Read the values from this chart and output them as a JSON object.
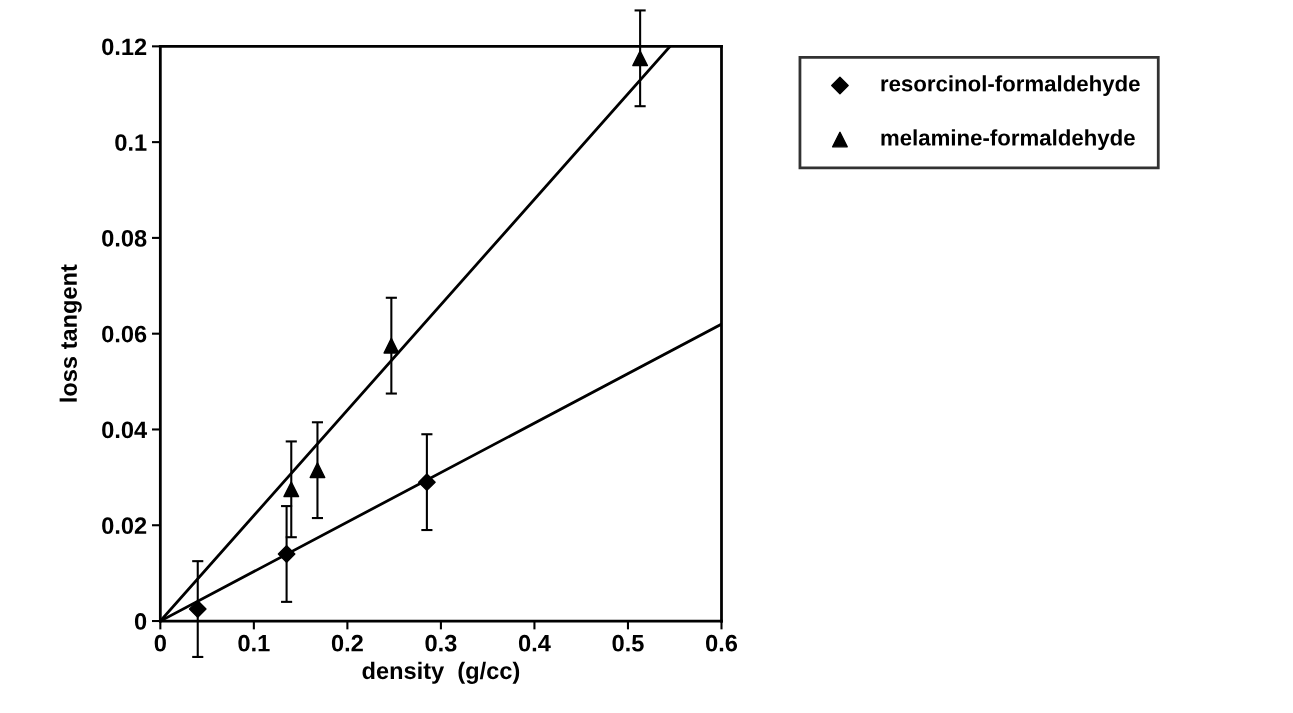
{
  "chart_data": {
    "type": "scatter",
    "xlabel": "density  (g/cc)",
    "ylabel": "loss tangent",
    "xlim": [
      0,
      0.6
    ],
    "xticks": [
      0,
      0.1,
      0.2,
      0.3,
      0.4,
      0.5,
      0.6
    ],
    "ylim": [
      0,
      0.12
    ],
    "yticks": [
      0,
      0.02,
      0.04,
      0.06,
      0.08,
      {
        "value": 0.1,
        "label": "0.1"
      },
      0.12
    ],
    "grid": false,
    "legend": "top right",
    "series": [
      {
        "name": "resorcinol-formaldehyde",
        "color": "#000000",
        "marker": "diamond",
        "x": [
          0.04,
          0.135,
          0.285
        ],
        "values": [
          0.0025,
          0.014,
          0.029
        ],
        "errors": [
          0.01,
          0.01,
          0.01
        ]
      },
      {
        "name": "melamine-formaldehyde",
        "color": "#000000",
        "marker": "triangle",
        "x": [
          0.14,
          0.168,
          0.247,
          0.513
        ],
        "values": [
          0.0275,
          0.0315,
          0.0575,
          0.1175
        ],
        "errors": [
          0.01,
          0.01,
          0.01,
          0.01
        ]
      },
      {
        "type": "line",
        "color": "#000000",
        "marker": "none",
        "x": [
          0,
          0.6
        ],
        "values": [
          0,
          0.062
        ]
      },
      {
        "type": "line",
        "color": "#000000",
        "marker": "none",
        "x": [
          0,
          0.545
        ],
        "values": [
          0,
          0.12
        ]
      }
    ]
  }
}
